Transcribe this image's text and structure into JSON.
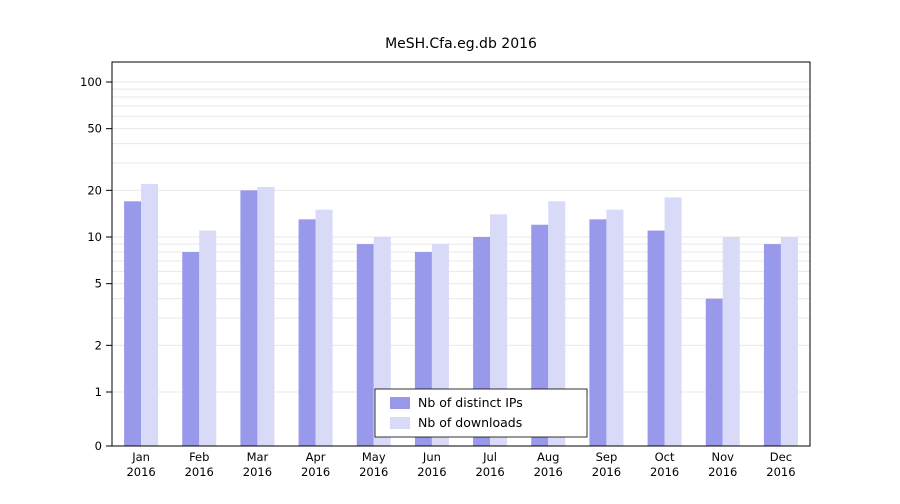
{
  "figure": {
    "background": "#ffffff"
  },
  "chart_data": {
    "type": "bar",
    "title": "MeSH.Cfa.eg.db 2016",
    "categories": [
      "Jan",
      "Feb",
      "Mar",
      "Apr",
      "May",
      "Jun",
      "Jul",
      "Aug",
      "Sep",
      "Oct",
      "Nov",
      "Dec"
    ],
    "x_sublabel": "2016",
    "series": [
      {
        "name": "Nb of distinct IPs",
        "color": "#9999ec",
        "values": [
          17,
          8,
          20,
          13,
          9,
          8,
          10,
          12,
          13,
          11,
          4,
          9
        ]
      },
      {
        "name": "Nb of downloads",
        "color": "#d9d9f8",
        "values": [
          22,
          11,
          21,
          15,
          10,
          9,
          14,
          17,
          15,
          18,
          10,
          10
        ]
      }
    ],
    "yscale": "log",
    "ylim": [
      0,
      120
    ],
    "y_ticks": [
      0,
      1,
      2,
      5,
      10,
      20,
      50,
      100
    ],
    "y_gridlines": [
      1,
      2,
      3,
      4,
      5,
      6,
      7,
      8,
      9,
      10,
      20,
      30,
      40,
      50,
      60,
      70,
      80,
      90,
      100
    ],
    "grid_on": true,
    "grid_color": "#e8e8e8",
    "axis_color": "#000000",
    "legend_position": "bottom-center"
  }
}
